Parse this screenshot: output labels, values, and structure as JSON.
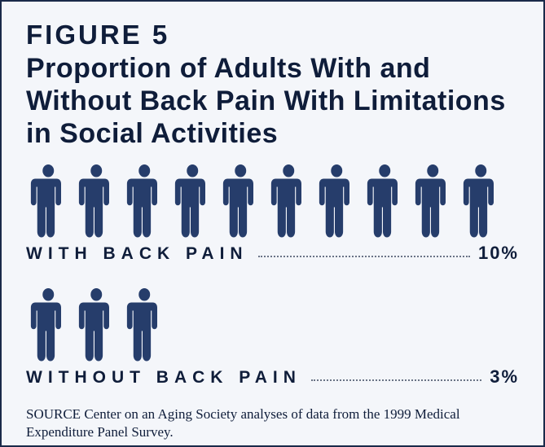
{
  "figure_label": "FIGURE 5",
  "title": "Proportion of Adults With and Without Back Pain With Limitations in Social Activities",
  "groups": [
    {
      "label": "WITH BACK PAIN",
      "value_pct": "10%",
      "icon_count": 10,
      "icon_count_partial": 0
    },
    {
      "label": "WITHOUT BACK PAIN",
      "value_pct": "3%",
      "icon_count": 3,
      "icon_count_partial": 0
    }
  ],
  "icon_color": "#263d6b",
  "border_color": "#1a2a4a",
  "background_color": "#f4f6fa",
  "text_color": "#0f1d3a",
  "label_fontsize": 21,
  "label_letter_spacing": 7,
  "title_fontsize": 34,
  "source_text": "SOURCE Center on an Aging Society analyses of data from the 1999 Medical Expenditure Panel Survey.",
  "type": "infographic"
}
